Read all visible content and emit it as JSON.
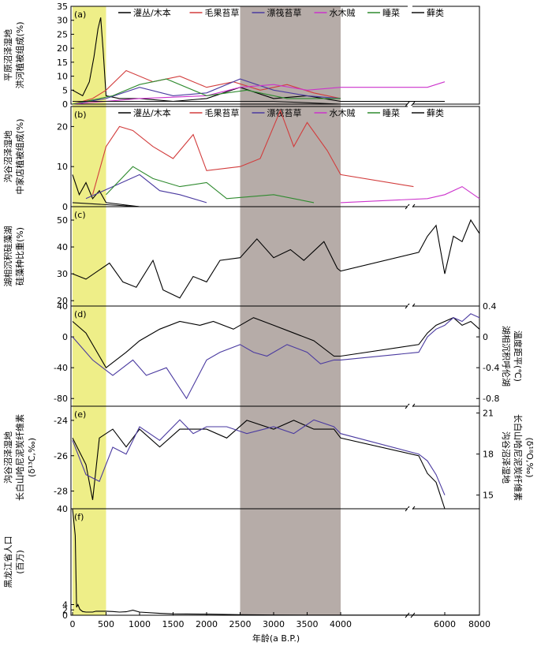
{
  "chart_data": {
    "type": "line",
    "x_axis": {
      "label": "年龄(a B.P.)",
      "tick_labels": [
        "0",
        "500",
        "1000",
        "1500",
        "2000",
        "2500",
        "3000",
        "3500",
        "4000",
        "6000",
        "8000"
      ],
      "break_note": "axis break between 4000 and 4000 (compressed scale 4000–8000)"
    },
    "shading": [
      {
        "name": "yellow-band",
        "from": 0,
        "to": 500,
        "color": "#eeee88"
      },
      {
        "name": "gray-band",
        "from": 2500,
        "to": 4000,
        "color": "#b6aca8"
      }
    ],
    "panels": [
      {
        "id": "a",
        "label": "(a)",
        "ylabel": [
          "平原沼泽湿地",
          "洪河植被组成(%)"
        ],
        "ylim": [
          0,
          35
        ],
        "yticks": [
          "0",
          "5",
          "10",
          "15",
          "20",
          "25",
          "30",
          "35"
        ],
        "legend": [
          "灌丛/木本",
          "毛果苔草",
          "漂筏苔草",
          "水木贼",
          "睡菜",
          "藓类"
        ],
        "series": [
          {
            "name": "灌丛/木本",
            "color": "#000000",
            "x": [
              0,
              150,
              250,
              320,
              380,
              420,
              460,
              500,
              700,
              1000,
              1500,
              2000,
              2500,
              3000,
              3500,
              4000,
              6000
            ],
            "y": [
              5,
              3,
              8,
              17,
              27,
              31,
              18,
              3,
              2,
              2,
              1,
              2,
              6,
              2,
              3,
              1,
              1
            ]
          },
          {
            "name": "毛果苔草",
            "color": "#d23c3c",
            "x": [
              0,
              300,
              500,
              800,
              1200,
              1600,
              2000,
              2400,
              2800,
              3200,
              3600,
              4000
            ],
            "y": [
              0,
              2,
              5,
              12,
              8,
              10,
              6,
              8,
              5,
              7,
              4,
              2
            ]
          },
          {
            "name": "漂筏苔草",
            "color": "#4a3aa0",
            "x": [
              0,
              500,
              1000,
              1500,
              2000,
              2500,
              3000,
              3500,
              4000
            ],
            "y": [
              0,
              2,
              6,
              3,
              4,
              9,
              5,
              3,
              2
            ]
          },
          {
            "name": "水木贼",
            "color": "#cc33cc",
            "x": [
              0,
              1000,
              2000,
              2500,
              3000,
              3500,
              4000,
              5000,
              6000
            ],
            "y": [
              0,
              2,
              3,
              6,
              7,
              5,
              6,
              6,
              8
            ]
          },
          {
            "name": "睡菜",
            "color": "#2e8a2e",
            "x": [
              0,
              600,
              1000,
              1400,
              2000,
              2600,
              3200,
              4000
            ],
            "y": [
              0,
              3,
              7,
              9,
              3,
              5,
              2,
              2
            ]
          },
          {
            "name": "藓类",
            "color": "#111111",
            "x": [
              0,
              1000,
              2000,
              3000,
              4000
            ],
            "y": [
              1,
              1,
              1,
              1,
              0
            ]
          }
        ]
      },
      {
        "id": "b",
        "label": "(b)",
        "ylabel": [
          "沟谷沼泽湿地",
          "中家店植被组成(%)"
        ],
        "ylim": [
          0,
          25
        ],
        "yticks": [
          "0",
          "10",
          "20"
        ],
        "legend": [
          "灌丛/木本",
          "毛果苔草",
          "漂筏苔草",
          "水木贼",
          "睡菜",
          "藓类"
        ],
        "series": [
          {
            "name": "灌丛/木本",
            "color": "#000000",
            "x": [
              0,
              100,
              200,
              300,
              400,
              500,
              1000,
              2000,
              3000,
              4000
            ],
            "y": [
              8,
              3,
              6,
              2,
              4,
              1,
              0,
              0,
              0,
              0
            ]
          },
          {
            "name": "毛果苔草",
            "color": "#d23c3c",
            "x": [
              300,
              500,
              700,
              900,
              1200,
              1500,
              1800,
              2000,
              2500,
              2800,
              3100,
              3300,
              3500,
              3800,
              4000,
              4200
            ],
            "y": [
              3,
              15,
              20,
              19,
              15,
              12,
              18,
              9,
              10,
              12,
              24,
              15,
              21,
              14,
              8,
              5
            ]
          },
          {
            "name": "漂筏苔草",
            "color": "#4a3aa0",
            "x": [
              200,
              600,
              1000,
              1300,
              1600,
              2000
            ],
            "y": [
              2,
              5,
              8,
              4,
              3,
              1
            ]
          },
          {
            "name": "水木贼",
            "color": "#cc33cc",
            "x": [
              4000,
              5000,
              6000,
              7000,
              8000
            ],
            "y": [
              1,
              2,
              3,
              5,
              2
            ]
          },
          {
            "name": "睡菜",
            "color": "#2e8a2e",
            "x": [
              500,
              900,
              1200,
              1600,
              2000,
              2300,
              3000,
              3600
            ],
            "y": [
              3,
              10,
              7,
              5,
              6,
              2,
              3,
              1
            ]
          },
          {
            "name": "藓类",
            "color": "#111111",
            "x": [
              0,
              1000,
              2000,
              4000
            ],
            "y": [
              1,
              0,
              0,
              0
            ]
          }
        ]
      },
      {
        "id": "c",
        "label": "(c)",
        "ylabel": [
          "湖相沉积硅藻湖",
          "硅藻种比重(%)"
        ],
        "ylim": [
          18,
          55
        ],
        "yticks": [
          "20",
          "30",
          "40",
          "50"
        ],
        "series": [
          {
            "name": "湖相沉积硅藻比重",
            "color": "#000000",
            "x": [
              0,
              200,
              550,
              750,
              950,
              1200,
              1350,
              1600,
              1800,
              2000,
              2200,
              2500,
              2750,
              3000,
              3250,
              3450,
              3750,
              3950,
              4000,
              4500,
              5000,
              5500,
              6000,
              6500,
              7000,
              7500,
              8000
            ],
            "y": [
              30,
              28,
              34,
              27,
              25,
              35,
              24,
              21,
              29,
              27,
              35,
              36,
              43,
              36,
              39,
              35,
              42,
              32,
              31,
              38,
              44,
              48,
              30,
              44,
              42,
              50,
              45
            ]
          }
        ]
      },
      {
        "id": "d",
        "label": "(d)",
        "ylabel_left": [],
        "ylabel_right": [
          "湖相沉积呼伦湖",
          "温度距平(℃)"
        ],
        "ylim_left": [
          -90,
          40
        ],
        "yticks_left": [
          "40",
          "0",
          "-40",
          "-80"
        ],
        "ylim_right": [
          -0.9,
          0.4
        ],
        "yticks_right": [
          "0.4",
          "0",
          "-0.4",
          "-0.8"
        ],
        "series": [
          {
            "name": "温度距平(左轴)",
            "color": "#000000",
            "x": [
              0,
              200,
              400,
              500,
              800,
              1000,
              1300,
              1600,
              1900,
              2100,
              2400,
              2700,
              3000,
              3300,
              3600,
              3900,
              4000,
              4500,
              5000,
              5500,
              6000,
              6500,
              7000,
              7500,
              8000
            ],
            "y": [
              20,
              5,
              -25,
              -40,
              -20,
              -5,
              10,
              20,
              15,
              20,
              10,
              25,
              15,
              5,
              -5,
              -25,
              -25,
              -10,
              5,
              15,
              20,
              25,
              15,
              20,
              10
            ]
          },
          {
            "name": "温度距平(右轴)",
            "color": "#4a3aa0",
            "x": [
              0,
              300,
              600,
              900,
              1100,
              1400,
              1700,
              2000,
              2200,
              2500,
              2700,
              2900,
              3200,
              3500,
              3700,
              3900,
              4000,
              4500,
              5000,
              5500,
              6000,
              6500,
              7000,
              7500,
              8000
            ],
            "y": [
              0.0,
              -0.3,
              -0.5,
              -0.3,
              -0.5,
              -0.4,
              -0.8,
              -0.3,
              -0.2,
              -0.1,
              -0.2,
              -0.25,
              -0.1,
              -0.2,
              -0.35,
              -0.3,
              -0.3,
              -0.2,
              0.0,
              0.1,
              0.15,
              0.25,
              0.2,
              0.3,
              0.25
            ]
          }
        ]
      },
      {
        "id": "e",
        "label": "(e)",
        "ylabel_left": [
          "沟谷沼泽湿地",
          "长白山哈尼泥炭纤维素",
          "(δ¹³C,‰)"
        ],
        "ylabel_right": [
          "沟谷沼泽湿地",
          "长白山哈尼泥炭纤维素",
          "(δ¹⁸O,‰)"
        ],
        "ylim_left": [
          -29,
          -23.2
        ],
        "yticks_left": [
          "-24",
          "-26",
          "-28"
        ],
        "ylim_right": [
          14,
          21.5
        ],
        "yticks_right": [
          "21",
          "18",
          "15"
        ],
        "series": [
          {
            "name": "δ13C",
            "color": "#000000",
            "x": [
              0,
              200,
              300,
              400,
              600,
              800,
              1000,
              1300,
              1600,
              2000,
              2300,
              2600,
              3000,
              3300,
              3600,
              3900,
              4000,
              4500,
              5000,
              5500,
              6000
            ],
            "y": [
              -25,
              -26.5,
              -28.5,
              -25,
              -24.5,
              -25.5,
              -24.5,
              -25.5,
              -24.5,
              -24.5,
              -25,
              -24,
              -24.5,
              -24,
              -24.5,
              -24.5,
              -25,
              -26,
              -27,
              -27.5,
              -29
            ]
          },
          {
            "name": "δ18O",
            "color": "#4a3aa0",
            "x": [
              0,
              200,
              400,
              600,
              800,
              1000,
              1300,
              1600,
              1800,
              2000,
              2300,
              2600,
              3000,
              3300,
              3600,
              3900,
              4000,
              4500,
              5000,
              5500,
              6000
            ],
            "y": [
              19,
              16.5,
              16,
              18.5,
              18,
              20,
              19,
              20.5,
              19.5,
              20,
              20,
              19.5,
              20,
              19.5,
              20.5,
              20,
              19.5,
              18,
              17.5,
              16.5,
              15
            ]
          }
        ]
      },
      {
        "id": "f",
        "label": "(f)",
        "ylabel": [
          "黑龙江省人口",
          "(百万)"
        ],
        "ylim": [
          0,
          40
        ],
        "yticks": [
          "0",
          "2",
          "4",
          "40"
        ],
        "series": [
          {
            "name": "黑龙江省人口",
            "color": "#000000",
            "x": [
              0,
              40,
              60,
              80,
              110,
              150,
              200,
              300,
              350,
              450,
              500,
              600,
              700,
              800,
              900,
              1000,
              1300,
              1500,
              2000,
              2500,
              3000,
              3500,
              4000,
              4500,
              6000,
              8000
            ],
            "y": [
              40,
              30,
              3,
              4,
              2.2,
              1.4,
              1.2,
              1.2,
              1.5,
              1.5,
              1.5,
              1.4,
              1.2,
              1.3,
              1.9,
              1.2,
              0.7,
              0.5,
              0.4,
              0.2,
              0.1,
              0.05,
              0.05,
              0.05,
              0.05,
              0.05
            ]
          }
        ]
      }
    ]
  }
}
